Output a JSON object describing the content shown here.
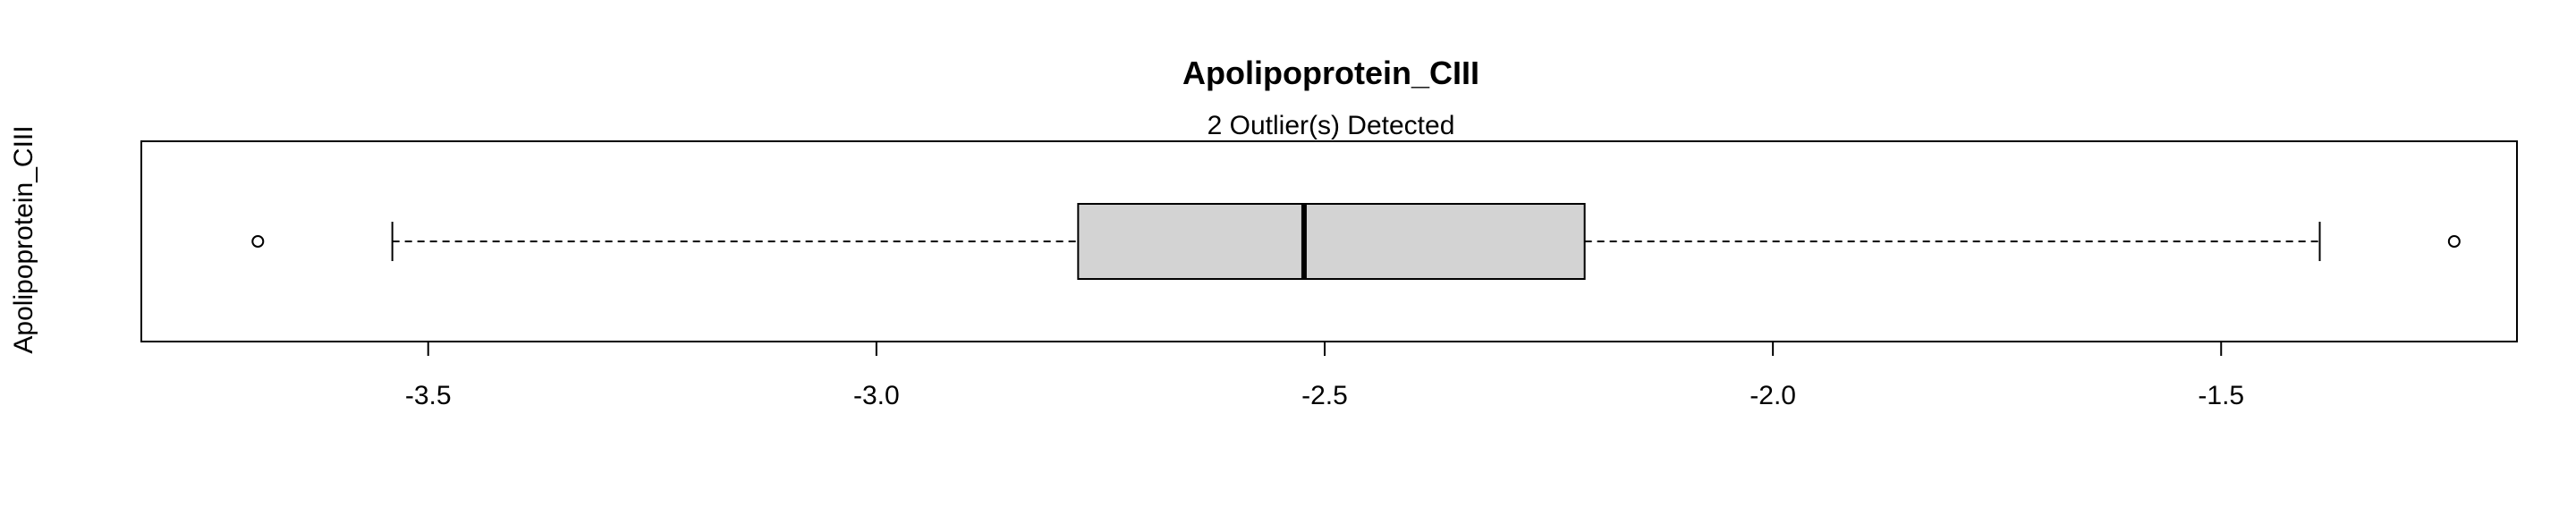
{
  "chart_data": {
    "type": "boxplot",
    "orientation": "horizontal",
    "title": "Apolipoprotein_CIII",
    "subtitle": "2 Outlier(s) Detected",
    "ylabel": "Apolipoprotein_CIII",
    "xlabel": "",
    "xlim": [
      -3.82,
      -1.17
    ],
    "x_ticks": [
      -3.5,
      -3.0,
      -2.5,
      -2.0,
      -1.5
    ],
    "x_tick_labels": [
      "-3.5",
      "-3.0",
      "-2.5",
      "-2.0",
      "-1.5"
    ],
    "box": {
      "whisker_low": -3.54,
      "q1": -2.775,
      "median": -2.523,
      "q3": -2.21,
      "whisker_high": -1.39
    },
    "outliers": [
      -3.69,
      -1.24
    ],
    "box_fill": "#d3d3d3",
    "grid": false,
    "legend": "none"
  }
}
